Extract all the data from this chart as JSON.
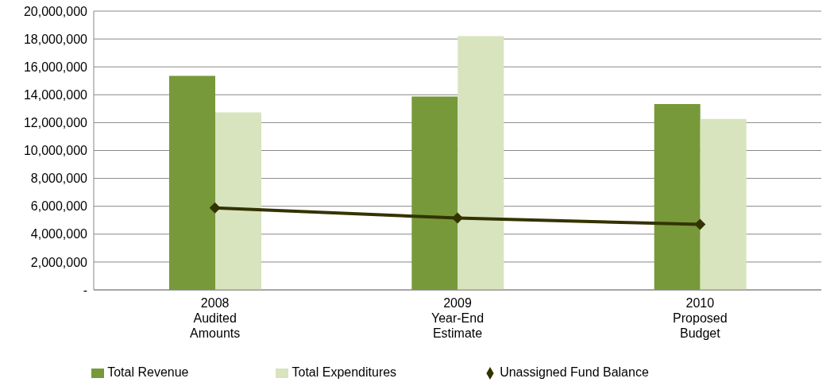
{
  "chart_data": {
    "type": "bar",
    "categories": [
      "2008\nAudited\nAmounts",
      "2009\nYear-End\nEstimate",
      "2010\nProposed\nBudget"
    ],
    "series": [
      {
        "name": "Total Revenue",
        "color": "#77993a",
        "values": [
          15350000,
          13870000,
          13330000
        ]
      },
      {
        "name": "Total Expenditures",
        "color": "#d7e4bd",
        "values": [
          12740000,
          18210000,
          12260000
        ]
      },
      {
        "name": "Unassigned Fund Balance",
        "type": "line",
        "color": "#333300",
        "values": [
          5890000,
          5150000,
          4700000
        ]
      }
    ],
    "ylim": [
      0,
      20000000
    ],
    "yticks": [
      {
        "value": 0,
        "label": "-"
      },
      {
        "value": 2000000,
        "label": "2,000,000"
      },
      {
        "value": 4000000,
        "label": "4,000,000"
      },
      {
        "value": 6000000,
        "label": "6,000,000"
      },
      {
        "value": 8000000,
        "label": "8,000,000"
      },
      {
        "value": 10000000,
        "label": "10,000,000"
      },
      {
        "value": 12000000,
        "label": "12,000,000"
      },
      {
        "value": 14000000,
        "label": "14,000,000"
      },
      {
        "value": 16000000,
        "label": "16,000,000"
      },
      {
        "value": 18000000,
        "label": "18,000,000"
      },
      {
        "value": 20000000,
        "label": "20,000,000"
      }
    ],
    "grid": "y",
    "legend": "bottom",
    "marker": "diamond"
  }
}
